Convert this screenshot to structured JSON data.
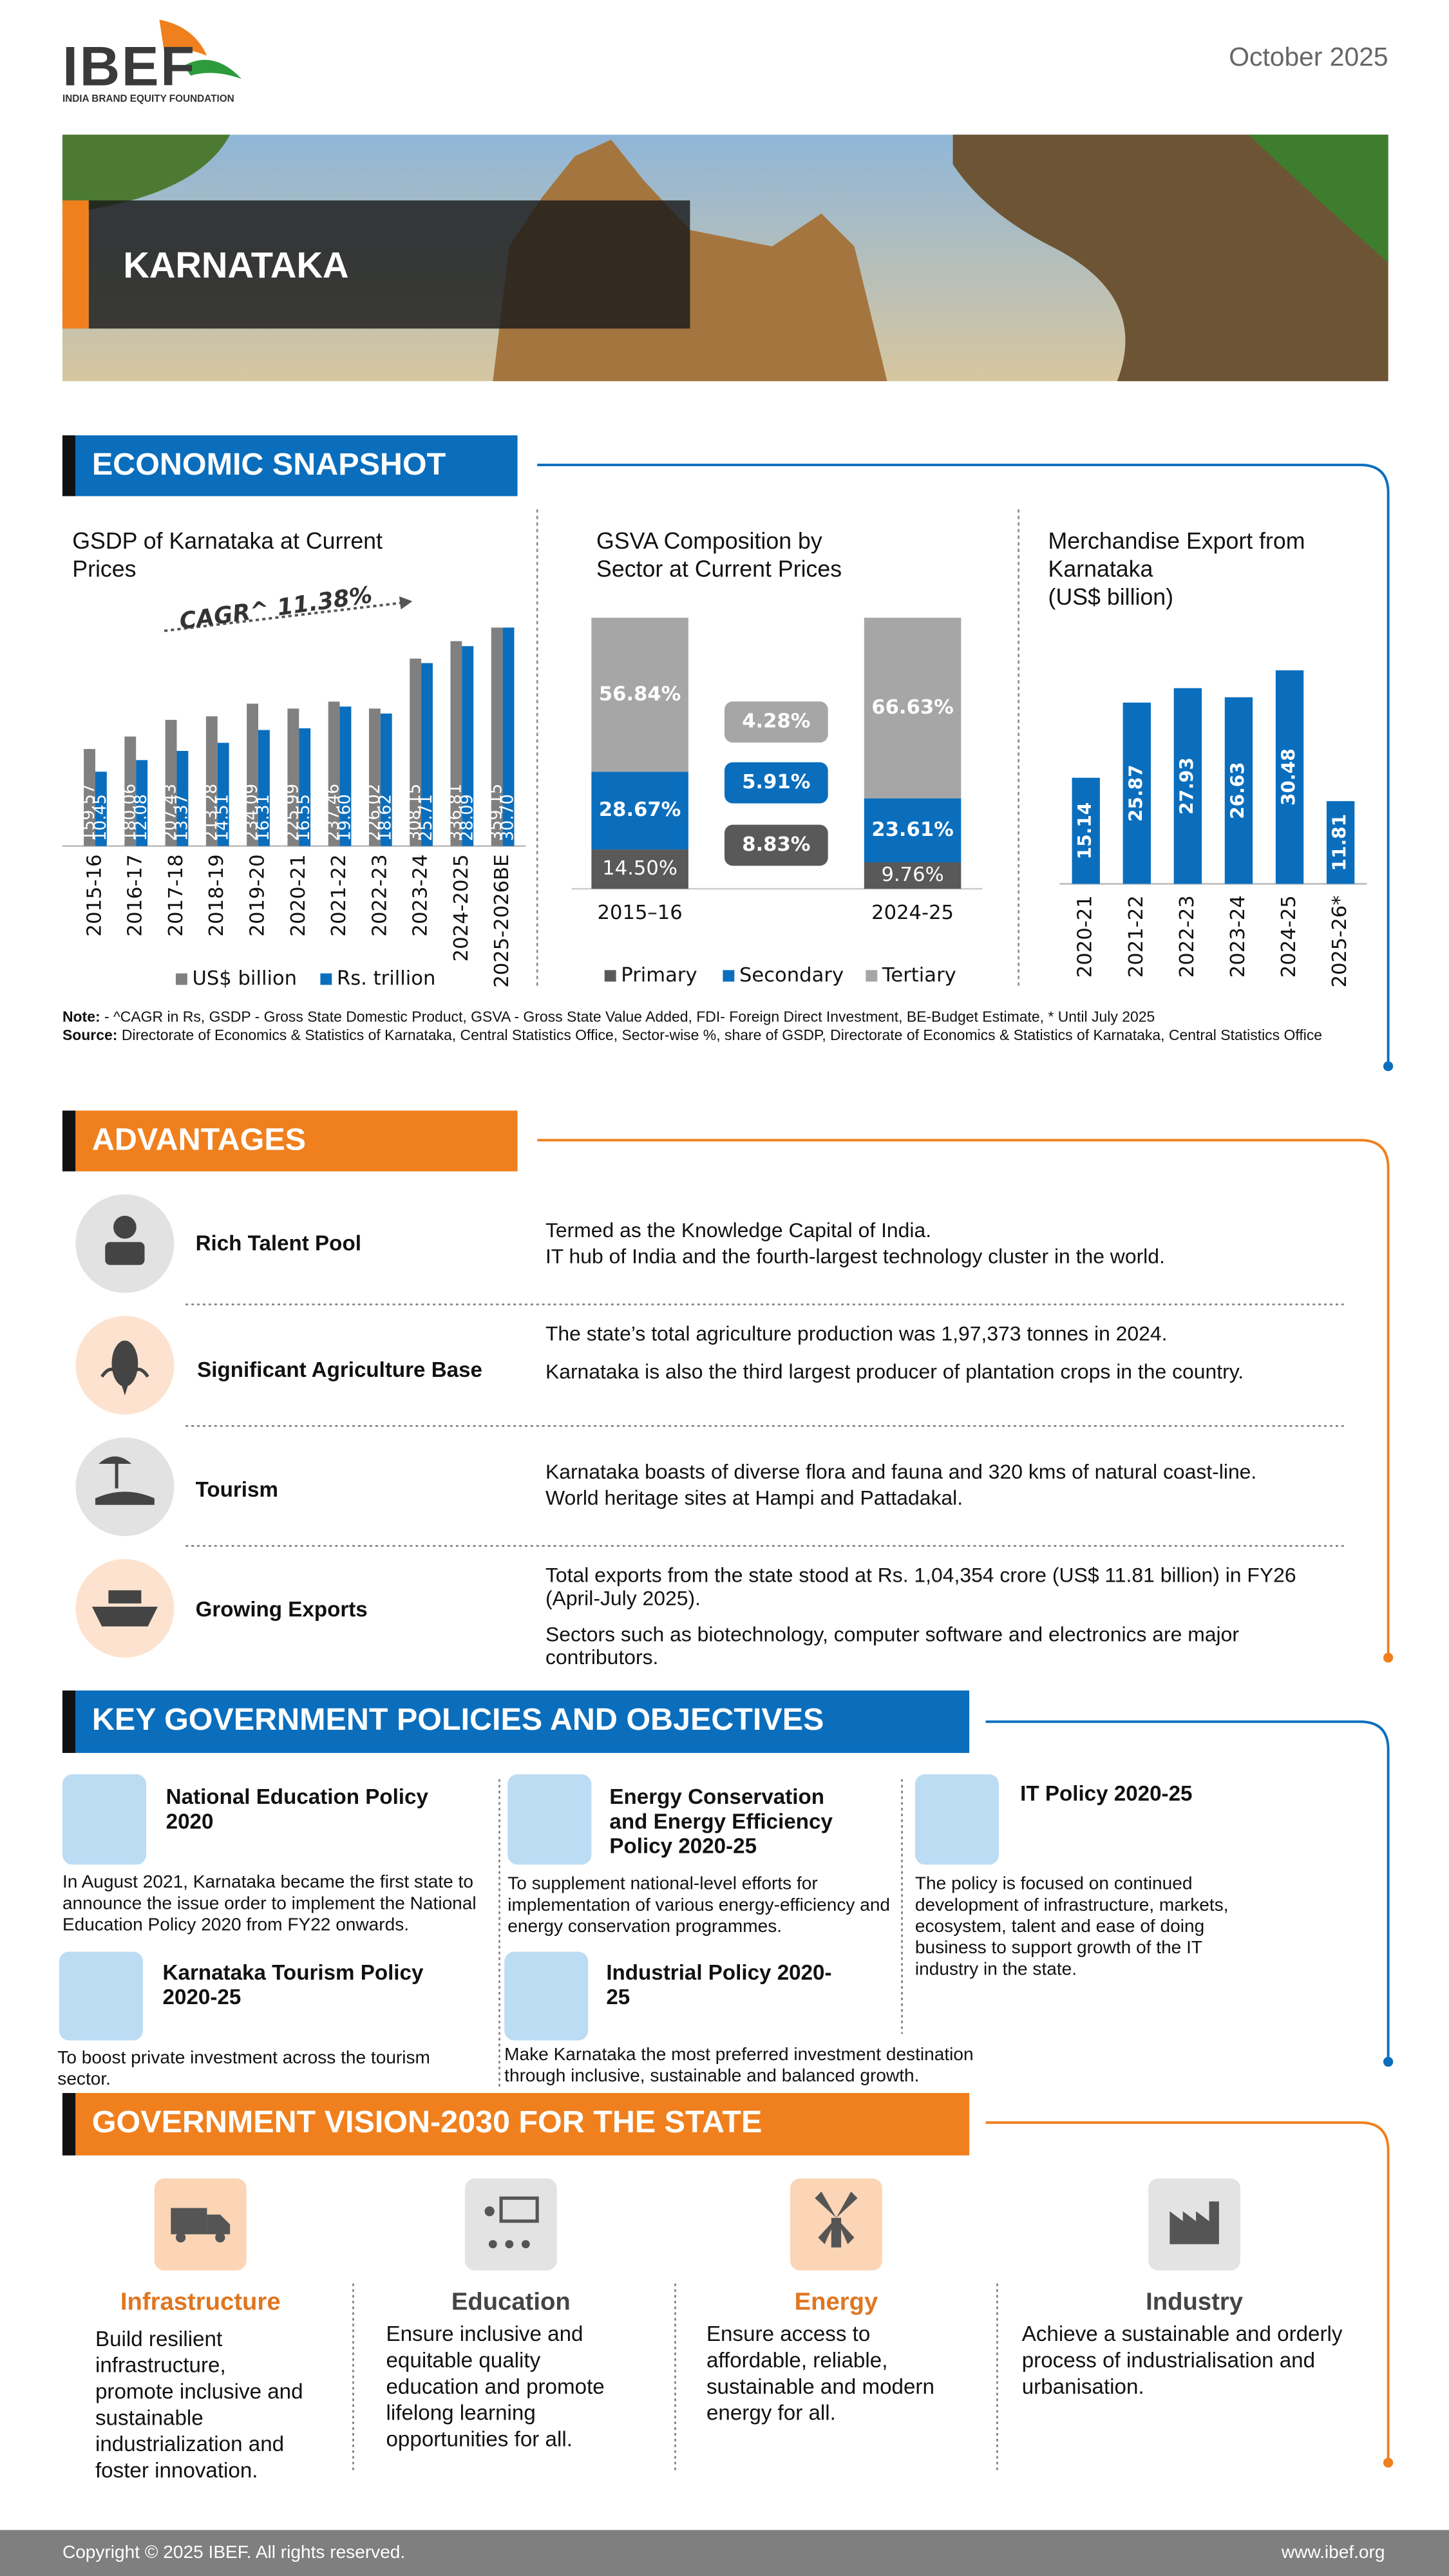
{
  "header": {
    "logo": "IBEF",
    "logo_subtitle": "INDIA BRAND EQUITY FOUNDATION",
    "date": "October 2025",
    "state": "KARNATAKA"
  },
  "economic_snapshot": {
    "title": "ECONOMIC SNAPSHOT",
    "note_label": "Note:",
    "note": " - ^CAGR in Rs, GSDP - Gross State Domestic Product, GSVA - Gross State Value Added, FDI- Foreign Direct Investment, BE-Budget Estimate, * Until July 2025",
    "source_label": "Source:",
    "source": " Directorate of Economics & Statistics of Karnataka, Central Statistics Office, Sector-wise %, share of GSDP, Directorate of Economics & Statistics of Karnataka, Central Statistics Office"
  },
  "chart_data": [
    {
      "type": "bar",
      "title": "GSDP of Karnataka at Current Prices",
      "annotation": "CAGR^ 11.38%",
      "categories": [
        "2015-16",
        "2016-17",
        "2017-18",
        "2018-19",
        "2019-20",
        "2020-21",
        "2021-22",
        "2022-23",
        "2023-24",
        "2024-2025",
        "2025-2026BE"
      ],
      "series": [
        {
          "name": "US$ billion",
          "color": "#808080",
          "values": [
            159.57,
            180.06,
            207.43,
            213.28,
            234.09,
            225.99,
            237.46,
            226.02,
            308.15,
            336.81,
            359.15
          ]
        },
        {
          "name": "Rs. trillion",
          "color": "#0a6ebd",
          "values": [
            10.45,
            12.08,
            13.37,
            14.51,
            16.31,
            16.55,
            19.6,
            18.62,
            25.71,
            28.09,
            30.7
          ],
          "value_labels": [
            "10.45",
            "12.08",
            "13.37",
            "14.51",
            "16.31",
            "16.55",
            "19.60",
            "18.62",
            "25.71",
            "28.09",
            "30.70"
          ]
        }
      ]
    },
    {
      "type": "stacked_bar",
      "title": "GSVA Composition by Sector at Current Prices",
      "categories": [
        "2015–16",
        "2024-25"
      ],
      "series": [
        {
          "name": "Primary",
          "color": "#595959",
          "values": [
            14.5,
            9.76
          ],
          "value_labels": [
            "14.50%",
            "9.76%"
          ]
        },
        {
          "name": "Secondary",
          "color": "#0a6ebd",
          "values": [
            28.67,
            23.61
          ],
          "value_labels": [
            "28.67%",
            "23.61%"
          ]
        },
        {
          "name": "Tertiary",
          "color": "#a6a6a6",
          "values": [
            56.84,
            66.63
          ],
          "value_labels": [
            "56.84%",
            "66.63%"
          ]
        }
      ],
      "annotations": [
        "4.28%",
        "5.91%",
        "8.83%"
      ]
    },
    {
      "type": "bar",
      "title": "Merchandise Export from Karnataka",
      "unit": "(US$ billion)",
      "color": "#0a6ebd",
      "categories": [
        "2020-21",
        "2021-22",
        "2022-23",
        "2023-24",
        "2024-25",
        "2025-26*"
      ],
      "values": [
        15.14,
        25.87,
        27.93,
        26.63,
        30.48,
        11.81
      ]
    }
  ],
  "advantages": {
    "title": "ADVANTAGES",
    "items": [
      {
        "name": "Rich Talent Pool",
        "points": [
          "Termed as the Knowledge Capital of India.",
          "IT hub of India and the fourth-largest technology cluster in the world."
        ]
      },
      {
        "name": "Significant Agriculture Base",
        "points": [
          "The state’s total agriculture production was 1,97,373 tonnes in 2024.",
          "Karnataka is also the third largest producer of plantation crops in the country."
        ]
      },
      {
        "name": "Tourism",
        "points": [
          "Karnataka boasts of diverse flora and fauna and 320 kms of natural coast-line.",
          "World heritage sites at Hampi and Pattadakal."
        ]
      },
      {
        "name": "Growing Exports",
        "points": [
          "Total exports from the state stood at Rs. 1,04,354 crore (US$ 11.81 billion) in FY26 (April-July 2025).",
          "Sectors such as biotechnology, computer software and electronics are major contributors."
        ]
      }
    ]
  },
  "policies": {
    "title": "KEY GOVERNMENT POLICIES AND OBJECTIVES",
    "items": [
      {
        "name": "National Education Policy 2020",
        "text": "In August 2021, Karnataka became the first state to announce the issue order to implement the National Education Policy 2020 from FY22 onwards."
      },
      {
        "name": "Energy Conservation and Energy Efficiency Policy 2020-25",
        "text": "To supplement national-level efforts for implementation of various energy-efficiency and energy conservation programmes."
      },
      {
        "name": "IT Policy 2020-25",
        "text": "The policy is focused on continued development of infrastructure, markets, ecosystem, talent and ease of doing business to support growth of the IT industry in the state."
      },
      {
        "name": "Karnataka Tourism Policy 2020-25",
        "text": "To boost private investment across the tourism sector."
      },
      {
        "name": "Industrial Policy 2020-25",
        "text": "Make Karnataka the most preferred investment destination through inclusive, sustainable and balanced growth."
      }
    ]
  },
  "vision": {
    "title": "GOVERNMENT VISION-2030 FOR THE STATE",
    "items": [
      {
        "name": "Infrastructure",
        "text": "Build resilient infrastructure, promote inclusive and sustainable industrialization and foster innovation."
      },
      {
        "name": "Education",
        "text": "Ensure inclusive and equitable quality education and promote lifelong learning opportunities for all."
      },
      {
        "name": "Energy",
        "text": "Ensure access to affordable, reliable, sustainable and modern energy for all."
      },
      {
        "name": "Industry",
        "text": "Achieve a sustainable and orderly process of industrialisation and urbanisation."
      }
    ]
  },
  "footer": {
    "copyright": "Copyright © 2025 IBEF. All rights reserved.",
    "website": "www.ibef.org"
  }
}
